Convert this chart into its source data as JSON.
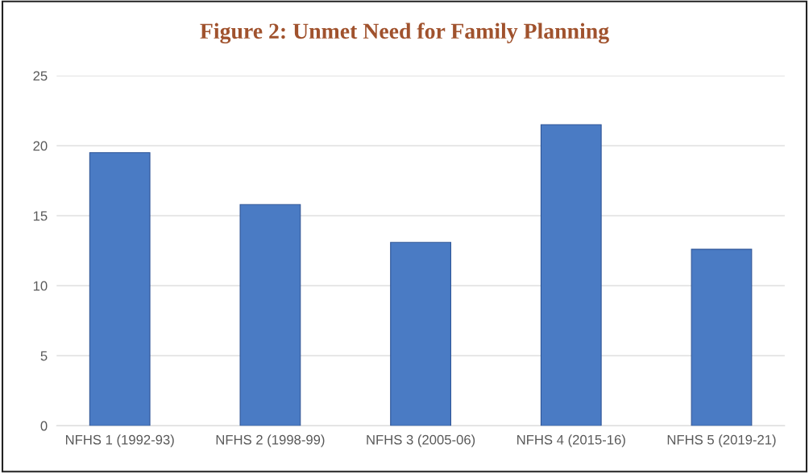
{
  "chart_data": {
    "type": "bar",
    "title": "Figure 2: Unmet Need for Family Planning",
    "categories": [
      "NFHS 1 (1992-93)",
      "NFHS 2 (1998-99)",
      "NFHS 3 (2005-06)",
      "NFHS 4 (2015-16)",
      "NFHS 5 (2019-21)"
    ],
    "values": [
      19.5,
      15.8,
      13.1,
      21.5,
      12.6
    ],
    "color": "#4a7bc4",
    "ylim": [
      0,
      25
    ],
    "yticks": [
      0,
      5,
      10,
      15,
      20,
      25
    ],
    "grid": "y"
  }
}
